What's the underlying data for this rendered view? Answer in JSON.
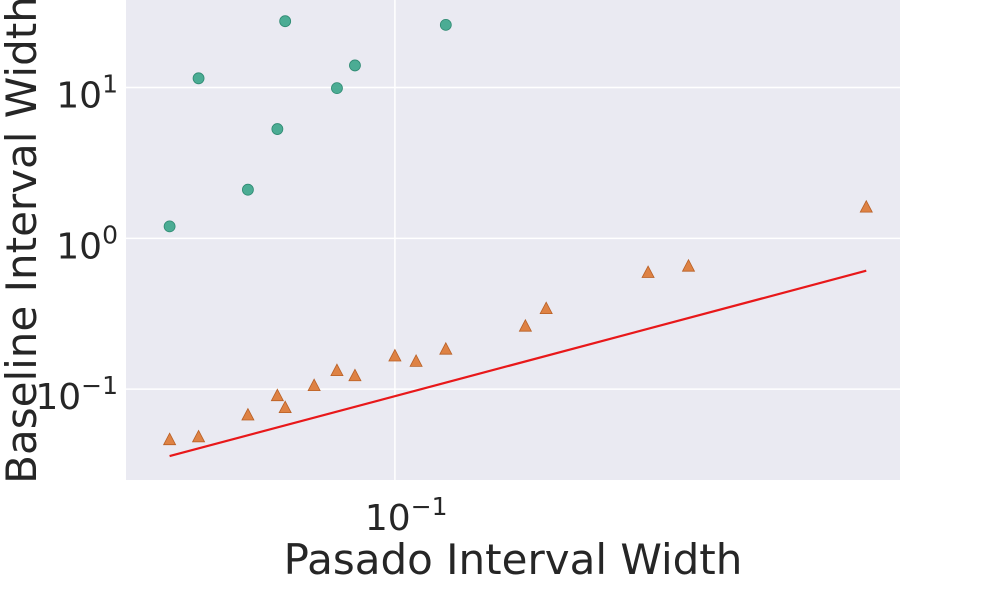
{
  "chart_data": {
    "type": "scatter",
    "title": "",
    "xlabel": "Pasado Interval Width",
    "ylabel": "Baseline Interval Width",
    "xscale": "log",
    "yscale": "log",
    "xlim": [
      0.0335,
      0.78
    ],
    "ylim": [
      0.025,
      38
    ],
    "grid": true,
    "x_ticks": [
      {
        "value": 0.1,
        "base": "10",
        "exp": "−1"
      }
    ],
    "y_ticks": [
      {
        "value": 0.1,
        "base": "10",
        "exp": "−1"
      },
      {
        "value": 1,
        "base": "10",
        "exp": "0"
      },
      {
        "value": 10,
        "base": "10",
        "exp": "1"
      }
    ],
    "series": [
      {
        "marker": "circle",
        "color": "#3aa58a",
        "points": [
          {
            "x": 0.04,
            "y": 1.2
          },
          {
            "x": 0.045,
            "y": 11.5
          },
          {
            "x": 0.055,
            "y": 2.1
          },
          {
            "x": 0.062,
            "y": 5.3
          },
          {
            "x": 0.064,
            "y": 27.5
          },
          {
            "x": 0.079,
            "y": 9.9
          },
          {
            "x": 0.085,
            "y": 14.0
          },
          {
            "x": 0.123,
            "y": 26.0
          }
        ]
      },
      {
        "marker": "triangle",
        "color": "#dd7c3a",
        "points": [
          {
            "x": 0.04,
            "y": 0.046
          },
          {
            "x": 0.045,
            "y": 0.048
          },
          {
            "x": 0.055,
            "y": 0.067
          },
          {
            "x": 0.062,
            "y": 0.09
          },
          {
            "x": 0.064,
            "y": 0.075
          },
          {
            "x": 0.072,
            "y": 0.105
          },
          {
            "x": 0.079,
            "y": 0.132
          },
          {
            "x": 0.085,
            "y": 0.122
          },
          {
            "x": 0.1,
            "y": 0.165
          },
          {
            "x": 0.109,
            "y": 0.152
          },
          {
            "x": 0.123,
            "y": 0.183
          },
          {
            "x": 0.17,
            "y": 0.26
          },
          {
            "x": 0.185,
            "y": 0.34
          },
          {
            "x": 0.28,
            "y": 0.59
          },
          {
            "x": 0.33,
            "y": 0.65
          },
          {
            "x": 0.68,
            "y": 1.6
          }
        ]
      }
    ],
    "reference_line": {
      "color": "#e8181a",
      "x": [
        0.04,
        0.68
      ],
      "y": [
        0.036,
        0.61
      ]
    }
  }
}
